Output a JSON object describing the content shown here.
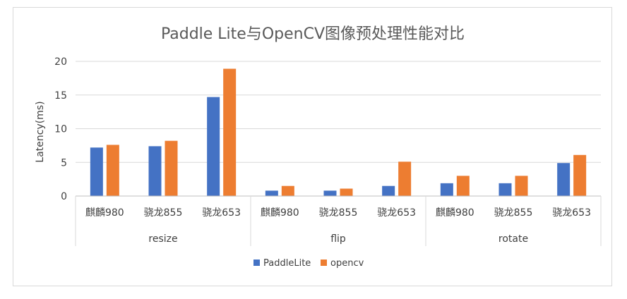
{
  "chart_data": {
    "type": "bar",
    "title": "Paddle Lite与OpenCV图像预处理性能对比",
    "ylabel": "Latency(ms)",
    "xlabel": "",
    "ylim": [
      0,
      20
    ],
    "yticks": [
      0,
      5,
      10,
      15,
      20
    ],
    "grid": true,
    "legend_position": "bottom",
    "groups": [
      {
        "name": "resize",
        "categories": [
          "麒麟980",
          "骁龙855",
          "骁龙653"
        ]
      },
      {
        "name": "flip",
        "categories": [
          "麒麟980",
          "骁龙855",
          "骁龙653"
        ]
      },
      {
        "name": "rotate",
        "categories": [
          "麒麟980",
          "骁龙855",
          "骁龙653"
        ]
      }
    ],
    "series": [
      {
        "name": "PaddleLite",
        "color": "#4472c4",
        "values": [
          7.2,
          7.4,
          14.7,
          0.8,
          0.8,
          1.5,
          1.9,
          1.9,
          4.9
        ]
      },
      {
        "name": "opencv",
        "color": "#ed7d31",
        "values": [
          7.6,
          8.2,
          18.9,
          1.5,
          1.1,
          5.1,
          3.0,
          3.0,
          6.1
        ]
      }
    ]
  }
}
